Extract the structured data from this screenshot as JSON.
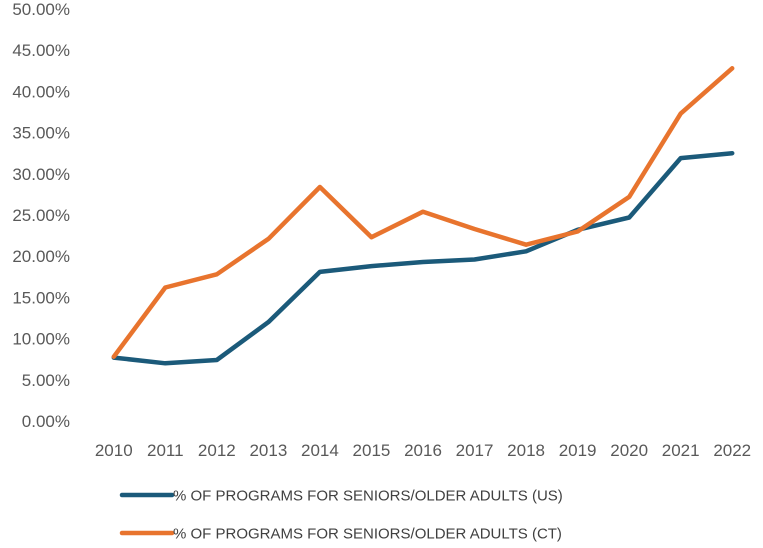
{
  "chart_data": {
    "type": "line",
    "title": "",
    "xlabel": "",
    "ylabel": "",
    "categories": [
      "2010",
      "2011",
      "2012",
      "2013",
      "2014",
      "2015",
      "2016",
      "2017",
      "2018",
      "2019",
      "2020",
      "2021",
      "2022"
    ],
    "ylim": [
      0,
      50
    ],
    "yticks": [
      0,
      5,
      10,
      15,
      20,
      25,
      30,
      35,
      40,
      45,
      50
    ],
    "ytick_labels": [
      "0.00%",
      "5.00%",
      "10.00%",
      "15.00%",
      "20.00%",
      "25.00%",
      "30.00%",
      "35.00%",
      "40.00%",
      "45.00%",
      "50.00%"
    ],
    "grid": false,
    "legend_position": "bottom",
    "series": [
      {
        "name": "% OF PROGRAMS FOR SENIORS/OLDER ADULTS (US)",
        "color": "#1b5a7a",
        "values": [
          7.7,
          7.0,
          7.4,
          12.0,
          18.1,
          18.8,
          19.3,
          19.6,
          20.6,
          23.2,
          24.7,
          31.9,
          32.5
        ]
      },
      {
        "name": "% OF PROGRAMS FOR SENIORS/OLDER ADULTS (CT)",
        "color": "#e8742e",
        "values": [
          7.8,
          16.2,
          17.8,
          22.1,
          28.4,
          22.3,
          25.4,
          23.3,
          21.4,
          23.0,
          27.2,
          37.3,
          42.8
        ]
      }
    ]
  }
}
